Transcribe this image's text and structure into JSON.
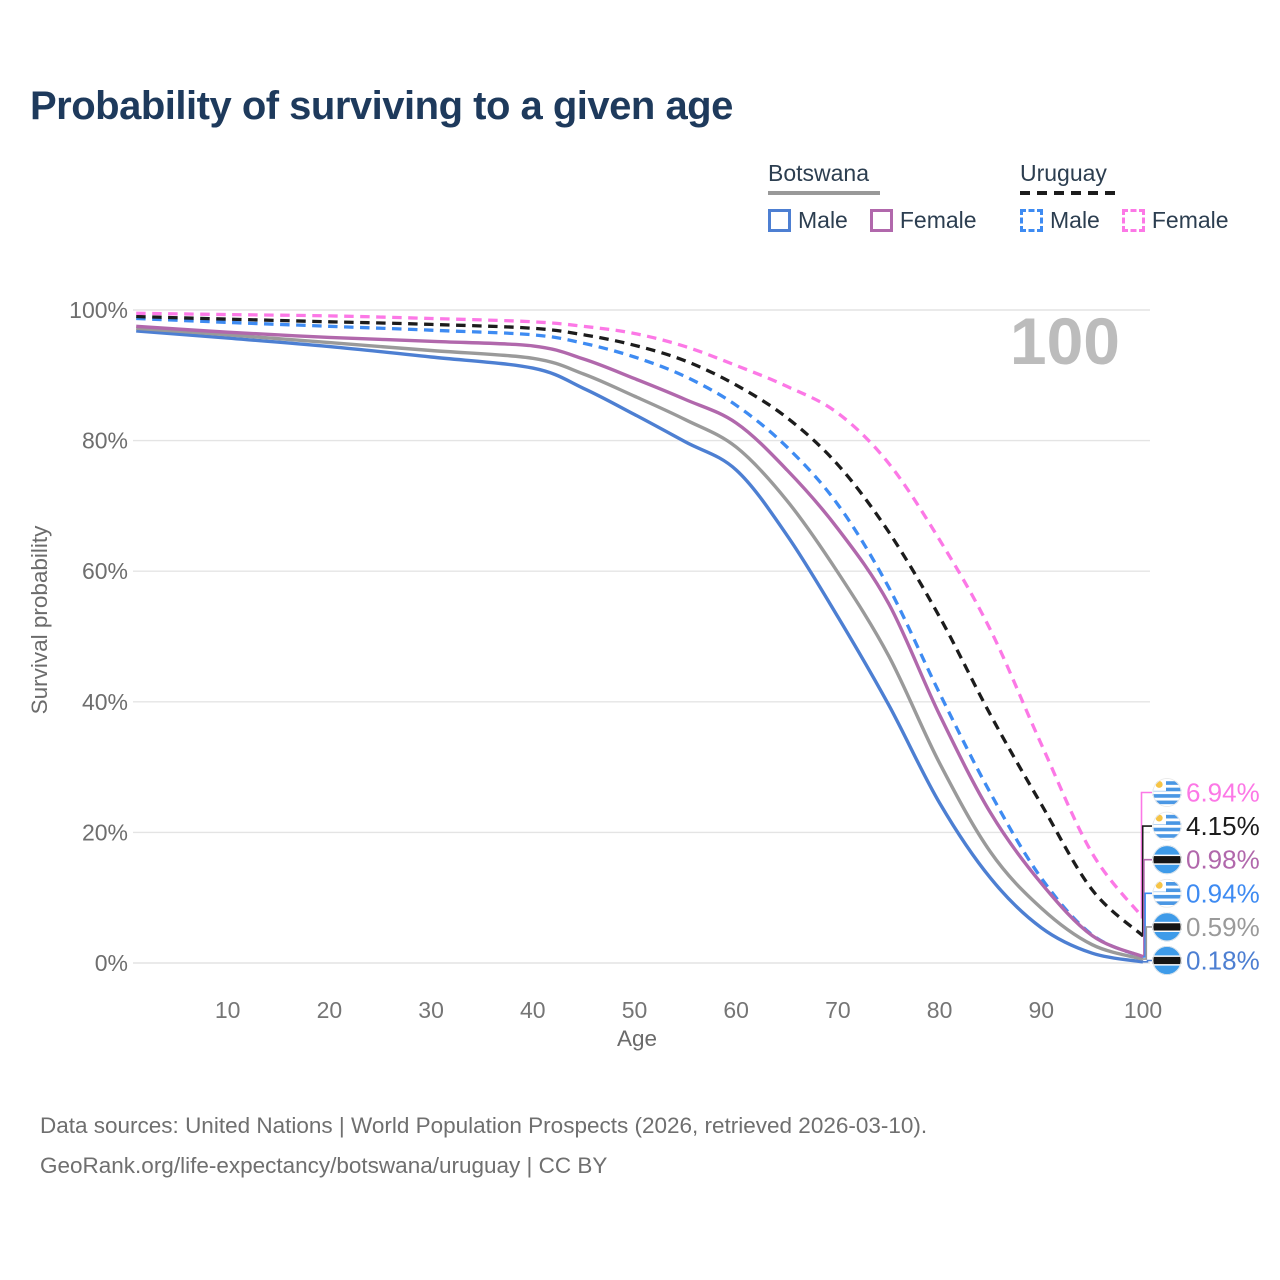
{
  "title": "Probability of surviving to a given age",
  "watermark": "100",
  "legend": {
    "groups": [
      {
        "name": "Botswana",
        "underline_color": "#999999",
        "underline_dashed": false,
        "items": [
          {
            "label": "Male",
            "color": "#4d7fd2",
            "dashed": false
          },
          {
            "label": "Female",
            "color": "#b168ac",
            "dashed": false
          }
        ]
      },
      {
        "name": "Uruguay",
        "underline_color": "#1c1c1c",
        "underline_dashed": true,
        "items": [
          {
            "label": "Male",
            "color": "#3e8bf2",
            "dashed": true
          },
          {
            "label": "Female",
            "color": "#fc78e6",
            "dashed": true
          }
        ]
      }
    ]
  },
  "chart_data": {
    "type": "line",
    "title": "Probability of surviving to a given age",
    "xlabel": "Age",
    "ylabel": "Survival probability",
    "xlim": [
      1,
      100
    ],
    "ylim": [
      0,
      100
    ],
    "grid": "horizontal-only",
    "x_tick_values": [
      10,
      20,
      30,
      40,
      50,
      60,
      70,
      80,
      90,
      100
    ],
    "x_tick_labels": [
      "10",
      "20",
      "30",
      "40",
      "50",
      "60",
      "70",
      "80",
      "90",
      "100"
    ],
    "y_tick_values": [
      0,
      20,
      40,
      60,
      80,
      100
    ],
    "y_tick_labels": [
      "0%",
      "20%",
      "40%",
      "60%",
      "80%",
      "100%"
    ],
    "ages": [
      1,
      10,
      20,
      30,
      40,
      45,
      50,
      55,
      60,
      65,
      70,
      75,
      80,
      85,
      90,
      95,
      100
    ],
    "series": [
      {
        "name": "Uruguay Female",
        "country": "uruguay",
        "color": "#fc78e6",
        "dashed": true,
        "end_label": "6.94%",
        "values": [
          99.5,
          99.3,
          99.1,
          98.7,
          98.2,
          97.5,
          96.4,
          94.4,
          91.5,
          88.3,
          84.2,
          76.5,
          64.8,
          51.0,
          33.5,
          16.8,
          6.94
        ]
      },
      {
        "name": "Uruguay",
        "country": "uruguay",
        "color": "#1c1c1c",
        "dashed": true,
        "end_label": "4.15%",
        "values": [
          99.0,
          98.6,
          98.2,
          97.8,
          97.2,
          96.2,
          94.6,
          92.2,
          88.5,
          83.5,
          76.3,
          66.0,
          53.0,
          38.0,
          24.3,
          11.2,
          4.15
        ]
      },
      {
        "name": "Botswana Female",
        "country": "botswana",
        "color": "#b168ac",
        "dashed": false,
        "end_label": "0.98%",
        "values": [
          97.5,
          96.6,
          95.8,
          95.2,
          94.5,
          92.5,
          89.5,
          86.3,
          82.7,
          75.5,
          66.5,
          55.0,
          38.0,
          23.0,
          12.2,
          4.2,
          0.98
        ]
      },
      {
        "name": "Uruguay Male",
        "country": "uruguay",
        "color": "#3e8bf2",
        "dashed": true,
        "end_label": "0.94%",
        "values": [
          98.7,
          98.1,
          97.5,
          96.9,
          96.2,
          94.9,
          92.8,
          89.8,
          85.4,
          79.0,
          70.2,
          57.5,
          41.3,
          26.0,
          13.0,
          4.3,
          0.94
        ]
      },
      {
        "name": "Botswana",
        "country": "botswana",
        "color": "#9a9a9a",
        "dashed": false,
        "end_label": "0.59%",
        "values": [
          97.2,
          96.2,
          95.0,
          93.8,
          92.6,
          90.2,
          86.8,
          83.2,
          79.0,
          70.8,
          59.8,
          47.0,
          30.6,
          17.0,
          8.4,
          2.8,
          0.59
        ]
      },
      {
        "name": "Botswana Male",
        "country": "botswana",
        "color": "#4d7fd2",
        "dashed": false,
        "end_label": "0.18%",
        "values": [
          96.8,
          95.7,
          94.4,
          92.8,
          91.1,
          88.0,
          84.0,
          79.8,
          75.5,
          65.5,
          53.0,
          39.5,
          24.5,
          13.0,
          5.4,
          1.5,
          0.18
        ]
      }
    ]
  },
  "flag_colors": {
    "uruguay_stripe": "#4a97e4",
    "uruguay_sun": "#f6c445",
    "botswana_blue": "#3e9be9",
    "botswana_black": "#151515"
  },
  "footer": {
    "line1": "Data sources: United Nations | World Population Prospects (2026, retrieved 2026-03-10).",
    "line2": "GeoRank.org/life-expectancy/botswana/uruguay | CC BY"
  }
}
